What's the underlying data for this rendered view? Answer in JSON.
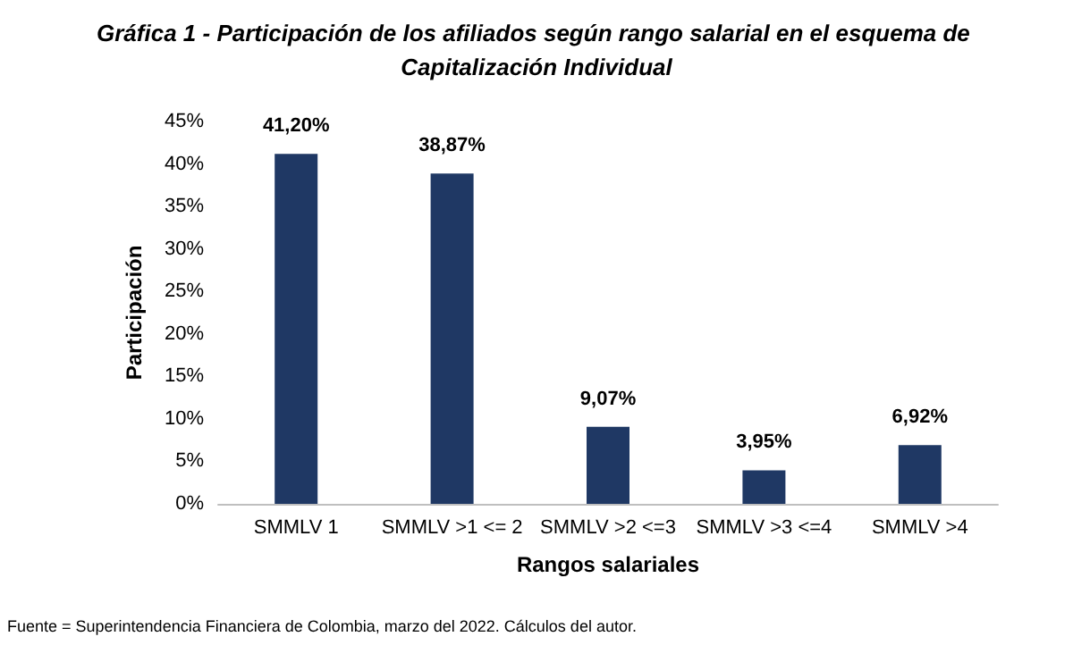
{
  "chart_data": {
    "type": "bar",
    "title": "Gráfica 1 - Participación de los afiliados según rango salarial en el esquema de Capitalización Individual",
    "xlabel": "Rangos salariales",
    "ylabel": "Participación",
    "categories": [
      "SMMLV 1",
      "SMMLV >1 <= 2",
      "SMMLV >2 <=3",
      "SMMLV >3 <=4",
      "SMMLV >4"
    ],
    "values": [
      41.2,
      38.87,
      9.07,
      3.95,
      6.92
    ],
    "value_labels": [
      "41,20%",
      "38,87%",
      "9,07%",
      "3,95%",
      "6,92%"
    ],
    "color": "#1f3864",
    "ylim": [
      0,
      45
    ],
    "yticks": [
      {
        "value": 0,
        "label": "0%"
      },
      {
        "value": 5,
        "label": "5%"
      },
      {
        "value": 10,
        "label": "10%"
      },
      {
        "value": 15,
        "label": "15%"
      },
      {
        "value": 20,
        "label": "20%"
      },
      {
        "value": 25,
        "label": "25%"
      },
      {
        "value": 30,
        "label": "30%"
      },
      {
        "value": 35,
        "label": "35%"
      },
      {
        "value": 40,
        "label": "40%"
      },
      {
        "value": 45,
        "label": "45%"
      }
    ],
    "grid": false,
    "annotations": [
      "Fuente = Superintendencia Financiera de Colombia, marzo del 2022. Cálculos del autor."
    ]
  }
}
